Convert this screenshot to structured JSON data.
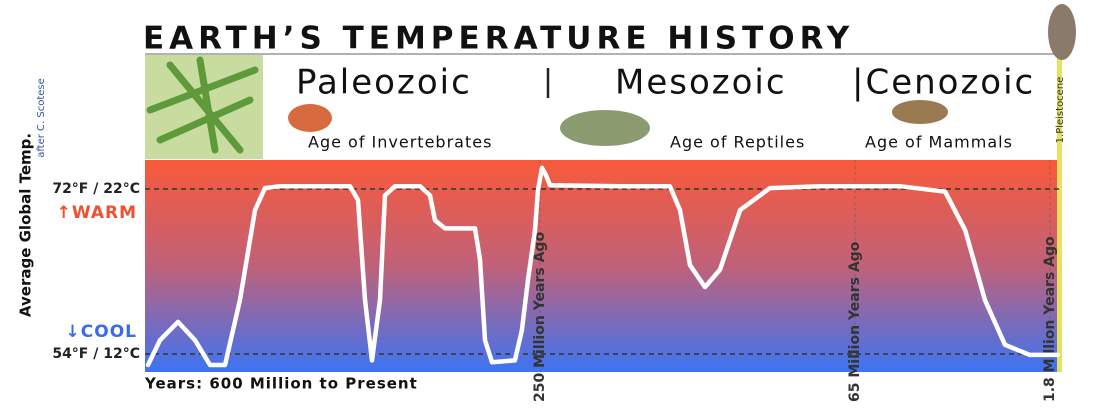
{
  "chart_data": {
    "type": "line",
    "title": "EARTH’S TEMPERATURE HISTORY",
    "y_label": "Average Global Temp.",
    "credit": "after C. Scotese",
    "warm_label": "↑WARM",
    "cool_label": "↓COOL",
    "x_label": "Years: 600 Million to Present",
    "pleistocene_label": "1.Pleistocene",
    "eras": [
      {
        "name": "Paleozoic",
        "subtitle": "Age of Invertebrates"
      },
      {
        "name": "Mesozoic",
        "subtitle": "Age of Reptiles"
      },
      {
        "name": "|Cenozoic",
        "subtitle": "Age of Mammals"
      }
    ],
    "era_separator": "|",
    "xlim": [
      600,
      0
    ],
    "xticks": [
      {
        "value": 250,
        "label": "250 Million Years Ago"
      },
      {
        "value": 65,
        "label": "65 Million Years Ago"
      },
      {
        "value": 1.8,
        "label": "1.8 Million Years Ago"
      }
    ],
    "ylim": [
      52,
      75
    ],
    "yticks": [
      {
        "value": 72,
        "label": "72°F / 22°C"
      },
      {
        "value": 54,
        "label": "54°F / 12°C"
      }
    ],
    "grid": true,
    "x": [
      597.3,
      586.7,
      570.8,
      555.7,
      542.4,
      529.1,
      515.8,
      502.5,
      493.7,
      480.4,
      418.4,
      411.3,
      405.1,
      398.9,
      391.8,
      387.3,
      378.5,
      356.3,
      347.5,
      343.0,
      334.2,
      307.6,
      303.2,
      298.7,
      292.5,
      272.2,
      266.0,
      260.6,
      254.4,
      251.8,
      248.8,
      246.5,
      244.1,
      203.0,
      173.7,
      167.8,
      161.9,
      153.1,
      144.3,
      132.5,
      114.9,
      85.6,
      50.4,
      35.8,
      29.3,
      22.9,
      16.4,
      8.3,
      0.6
    ],
    "series": [
      {
        "name": "Average Global Temp.",
        "color": "#ffffff",
        "values": [
          52.8,
          55.5,
          57.5,
          55.5,
          52.8,
          52.8,
          59.9,
          69.7,
          72.1,
          72.3,
          72.3,
          70.8,
          59.9,
          53.3,
          59.9,
          71.3,
          72.3,
          72.3,
          71.3,
          68.6,
          67.7,
          67.7,
          64.3,
          55.5,
          53.1,
          53.3,
          56.6,
          62.1,
          67.5,
          71.9,
          74.3,
          73.5,
          72.4,
          72.3,
          72.3,
          69.7,
          63.7,
          61.3,
          63.2,
          69.7,
          72.1,
          72.3,
          72.3,
          71.7,
          67.5,
          59.9,
          55.0,
          53.9,
          53.9
        ]
      }
    ]
  }
}
